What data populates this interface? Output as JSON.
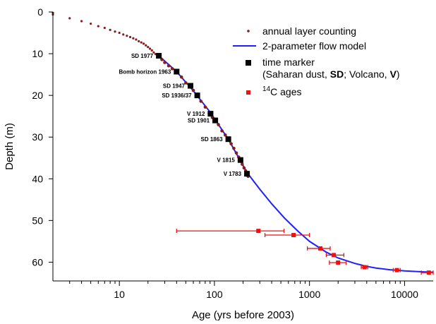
{
  "chart_data": {
    "type": "scatter",
    "x_scale": "log",
    "xlim": [
      2,
      20000
    ],
    "ylim": [
      0,
      64.5
    ],
    "y_inverted": true,
    "xlabel": "Age (yrs before 2003)",
    "ylabel": "Depth (m)",
    "x_ticks": [
      10,
      100,
      1000,
      10000
    ],
    "x_tick_labels": [
      "10",
      "100",
      "1000",
      "10000"
    ],
    "y_ticks": [
      0,
      10,
      20,
      30,
      40,
      50,
      60
    ],
    "y_tick_labels": [
      "0",
      "10",
      "20",
      "30",
      "40",
      "50",
      "60"
    ],
    "grid": false,
    "legend": {
      "placement": "top-right",
      "entries": [
        {
          "label": "annual layer counting",
          "marker": "dot",
          "color": "#8b1a1a"
        },
        {
          "label": "2-parameter flow model",
          "marker": "line",
          "color": "#1f1fff"
        },
        {
          "label": "time marker",
          "label2_parts": [
            [
              "(Saharan dust, ",
              false
            ],
            [
              "SD",
              true
            ],
            [
              "; Volcano, ",
              false
            ],
            [
              "V",
              true
            ],
            [
              ")",
              false
            ]
          ],
          "marker": "square",
          "color": "#000000"
        },
        {
          "label_sup": "14",
          "label": "C ages",
          "marker": "square-small",
          "color": "#ee1111"
        }
      ]
    },
    "series": [
      {
        "name": "annual layer counting",
        "color": "#8b1a1a",
        "points": [
          [
            1.5,
            0.2
          ],
          [
            2,
            0.6
          ],
          [
            3,
            1.5
          ],
          [
            4,
            2.2
          ],
          [
            5,
            2.8
          ],
          [
            6,
            3.4
          ],
          [
            7,
            3.8
          ],
          [
            8,
            4.3
          ],
          [
            9,
            4.7
          ],
          [
            10,
            5.0
          ],
          [
            11,
            5.4
          ],
          [
            12,
            5.7
          ],
          [
            13,
            6.0
          ],
          [
            14,
            6.3
          ],
          [
            15,
            6.6
          ],
          [
            16,
            7.0
          ],
          [
            17,
            7.3
          ],
          [
            18,
            7.6
          ],
          [
            19,
            8.0
          ],
          [
            20,
            8.4
          ],
          [
            21,
            8.8
          ],
          [
            22,
            9.2
          ],
          [
            23,
            9.7
          ],
          [
            24,
            10.1
          ],
          [
            25,
            10.4
          ],
          [
            26,
            10.7
          ],
          [
            28,
            11.4
          ],
          [
            30,
            12.1
          ],
          [
            33,
            12.9
          ],
          [
            36,
            13.6
          ],
          [
            40,
            14.3
          ],
          [
            45,
            15.6
          ],
          [
            50,
            17.0
          ],
          [
            55,
            17.7
          ],
          [
            60,
            18.8
          ],
          [
            66,
            20.0
          ],
          [
            72,
            21.4
          ],
          [
            80,
            22.8
          ],
          [
            88,
            24.3
          ],
          [
            95,
            25.3
          ],
          [
            102,
            26.0
          ],
          [
            110,
            27.0
          ],
          [
            120,
            28.5
          ],
          [
            130,
            29.5
          ],
          [
            140,
            30.5
          ],
          [
            150,
            31.6
          ],
          [
            160,
            32.7
          ],
          [
            170,
            33.8
          ],
          [
            180,
            34.8
          ],
          [
            188,
            35.5
          ],
          [
            196,
            36.5
          ],
          [
            205,
            37.4
          ],
          [
            213,
            38.1
          ],
          [
            220,
            38.8
          ],
          [
            226,
            39.4
          ]
        ]
      },
      {
        "name": "2-parameter flow model",
        "color": "#1f1fff",
        "points": [
          [
            26,
            10.5
          ],
          [
            40,
            14.3
          ],
          [
            60,
            18.9
          ],
          [
            90,
            24.0
          ],
          [
            140,
            30.5
          ],
          [
            220,
            38.5
          ],
          [
            300,
            42.5
          ],
          [
            400,
            46.0
          ],
          [
            550,
            49.5
          ],
          [
            750,
            52.5
          ],
          [
            1000,
            55.0
          ],
          [
            1500,
            57.6
          ],
          [
            2000,
            59.0
          ],
          [
            3000,
            60.3
          ],
          [
            4000,
            61.0
          ],
          [
            5000,
            61.4
          ],
          [
            7000,
            61.8
          ],
          [
            10000,
            62.1
          ],
          [
            15000,
            62.3
          ],
          [
            20000,
            62.4
          ]
        ]
      }
    ],
    "time_markers": [
      {
        "label": "SD 1977",
        "age": 26,
        "depth": 10.5
      },
      {
        "label": "Bomb horizon 1963",
        "age": 40,
        "depth": 14.3
      },
      {
        "label": "SD 1947",
        "age": 56,
        "depth": 17.7
      },
      {
        "label": "SD 1936/37",
        "age": 66,
        "depth": 20.0
      },
      {
        "label": "V 1912",
        "age": 91,
        "depth": 24.4
      },
      {
        "label": "SD 1901",
        "age": 102,
        "depth": 26.0
      },
      {
        "label": "SD 1863",
        "age": 140,
        "depth": 30.5
      },
      {
        "label": "V 1815",
        "age": 188,
        "depth": 35.5
      },
      {
        "label": "V 1783",
        "age": 220,
        "depth": 38.8
      }
    ],
    "c14_ages": [
      {
        "age": 290,
        "depth": 52.5,
        "xerr": [
          40,
          540
        ]
      },
      {
        "age": 680,
        "depth": 53.5,
        "xerr": [
          340,
          1000
        ]
      },
      {
        "age": 1300,
        "depth": 56.7,
        "xerr": [
          950,
          1650
        ]
      },
      {
        "age": 1800,
        "depth": 58.3,
        "xerr": [
          1500,
          2300
        ]
      },
      {
        "age": 2000,
        "depth": 60.1,
        "xerr": [
          1620,
          2430
        ]
      },
      {
        "age": 3800,
        "depth": 61.2,
        "xerr": [
          3500,
          4100
        ]
      },
      {
        "age": 8300,
        "depth": 61.9,
        "xerr": [
          7600,
          9000
        ]
      },
      {
        "age": 18000,
        "depth": 62.5,
        "xerr": [
          15000,
          20000
        ]
      }
    ]
  }
}
